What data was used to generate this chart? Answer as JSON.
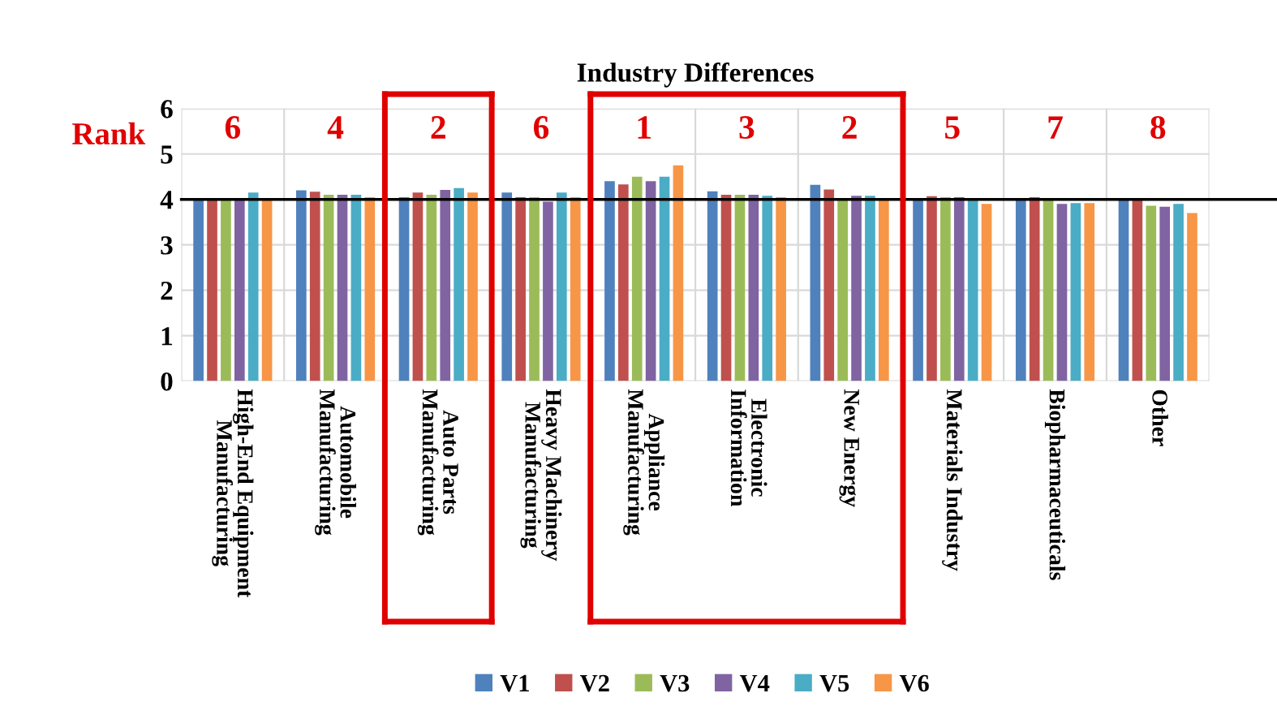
{
  "chart_data": {
    "type": "bar",
    "title": "Industry Differences",
    "categories": [
      "High-End Equipment\nManufacturing",
      "Automobile\nManufacturing",
      "Auto Parts\nManufacturing",
      "Heavy Machinery\nManufacturing",
      "Appliance\nManufacturing",
      "Electronic\nInformation",
      "New Energy",
      "Materials Industry",
      "Biopharmaceuticals",
      "Other"
    ],
    "series": [
      {
        "name": "V1",
        "color": "#4f81bd",
        "values": [
          4.0,
          4.2,
          4.05,
          4.15,
          4.4,
          4.18,
          4.32,
          4.0,
          4.0,
          4.0
        ]
      },
      {
        "name": "V2",
        "color": "#c0504d",
        "values": [
          4.0,
          4.17,
          4.15,
          4.05,
          4.33,
          4.1,
          4.22,
          4.07,
          4.05,
          4.0
        ]
      },
      {
        "name": "V3",
        "color": "#9bbb59",
        "values": [
          4.0,
          4.1,
          4.1,
          4.05,
          4.5,
          4.1,
          4.0,
          4.05,
          4.0,
          3.86
        ]
      },
      {
        "name": "V4",
        "color": "#8064a2",
        "values": [
          4.0,
          4.1,
          4.21,
          3.95,
          4.4,
          4.1,
          4.08,
          4.05,
          3.9,
          3.84
        ]
      },
      {
        "name": "V5",
        "color": "#4bacc6",
        "values": [
          4.15,
          4.1,
          4.25,
          4.15,
          4.5,
          4.08,
          4.08,
          4.0,
          3.92,
          3.9
        ]
      },
      {
        "name": "V6",
        "color": "#f79646",
        "values": [
          4.0,
          4.05,
          4.15,
          4.05,
          4.75,
          4.05,
          4.0,
          3.9,
          3.92,
          3.7
        ]
      }
    ],
    "ylim": [
      0,
      6
    ],
    "yticks": [
      0,
      1,
      2,
      3,
      4,
      5,
      6
    ],
    "grid": true,
    "legend": "bottom",
    "ref_lines": [
      {
        "axis": "y",
        "value": 4,
        "color": "#000000"
      }
    ],
    "annotations": [
      "Rank",
      "6",
      "4",
      "2",
      "6",
      "1",
      "3",
      "2",
      "5",
      "7",
      "8"
    ]
  }
}
